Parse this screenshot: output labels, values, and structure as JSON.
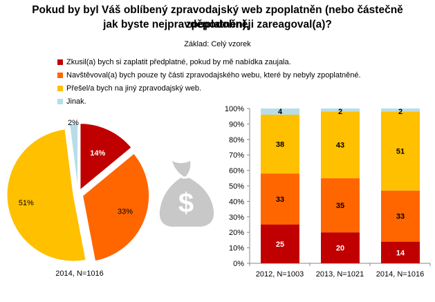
{
  "title_line1": "Pokud by byl Váš oblíbený zpravodajský web zpoplatněn (nebo částečně zpoplatněn),",
  "title_line2": "jak byste nejpravděpodobněji zareagoval(a)?",
  "subtitle": "Základ: Celý vzorek",
  "legend": [
    {
      "label": "Zkusil(a) bych si zaplatit předplatné, pokud by mě nabídka zaujala.",
      "color": "#C00000"
    },
    {
      "label": "Navštěvoval(a) bych pouze ty části zpravodajského webu, které by nebyly zpoplatněné.",
      "color": "#FF6600"
    },
    {
      "label": "Přešel/a bych na jiný zpravodajský web.",
      "color": "#FFC000"
    },
    {
      "label": "Jinak.",
      "color": "#B7DDE8"
    }
  ],
  "icon": "money-bag-icon",
  "chart_data": [
    {
      "type": "pie",
      "caption": "2014, N=1016",
      "slices": [
        {
          "name": "Zkusil(a) bych si zaplatit předplatné",
          "value": 14,
          "label": "14%",
          "color": "#C00000",
          "label_color": "#ffffff"
        },
        {
          "name": "Navštěvoval(a) bych pouze nezpoplatněné části",
          "value": 33,
          "label": "33%",
          "color": "#FF6600",
          "label_color": "#000000"
        },
        {
          "name": "Přešel/a bych na jiný web",
          "value": 51,
          "label": "51%",
          "color": "#FFC000",
          "label_color": "#000000"
        },
        {
          "name": "Jinak",
          "value": 2,
          "label": "2%",
          "color": "#B7DDE8",
          "label_color": "#000000"
        }
      ]
    },
    {
      "type": "bar",
      "stacked": true,
      "percent": true,
      "categories": [
        "2012, N=1003",
        "2013, N=1021",
        "2014, N=1016"
      ],
      "series": [
        {
          "name": "Zkusil(a) bych si zaplatit předplatné",
          "color": "#C00000",
          "label_color": "#ffffff",
          "values": [
            25,
            20,
            14
          ]
        },
        {
          "name": "Navštěvoval(a) bych pouze nezpoplatněné části",
          "color": "#FF6600",
          "label_color": "#000000",
          "values": [
            33,
            35,
            33
          ]
        },
        {
          "name": "Přešel/a bych na jiný web",
          "color": "#FFC000",
          "label_color": "#000000",
          "values": [
            38,
            43,
            51
          ]
        },
        {
          "name": "Jinak",
          "color": "#B7DDE8",
          "label_color": "#000000",
          "values": [
            4,
            2,
            2
          ]
        }
      ],
      "yticks": [
        "0%",
        "10%",
        "20%",
        "30%",
        "40%",
        "50%",
        "60%",
        "70%",
        "80%",
        "90%",
        "100%"
      ],
      "ylim": [
        0,
        100
      ],
      "grid": false,
      "legend": "top-left"
    }
  ]
}
